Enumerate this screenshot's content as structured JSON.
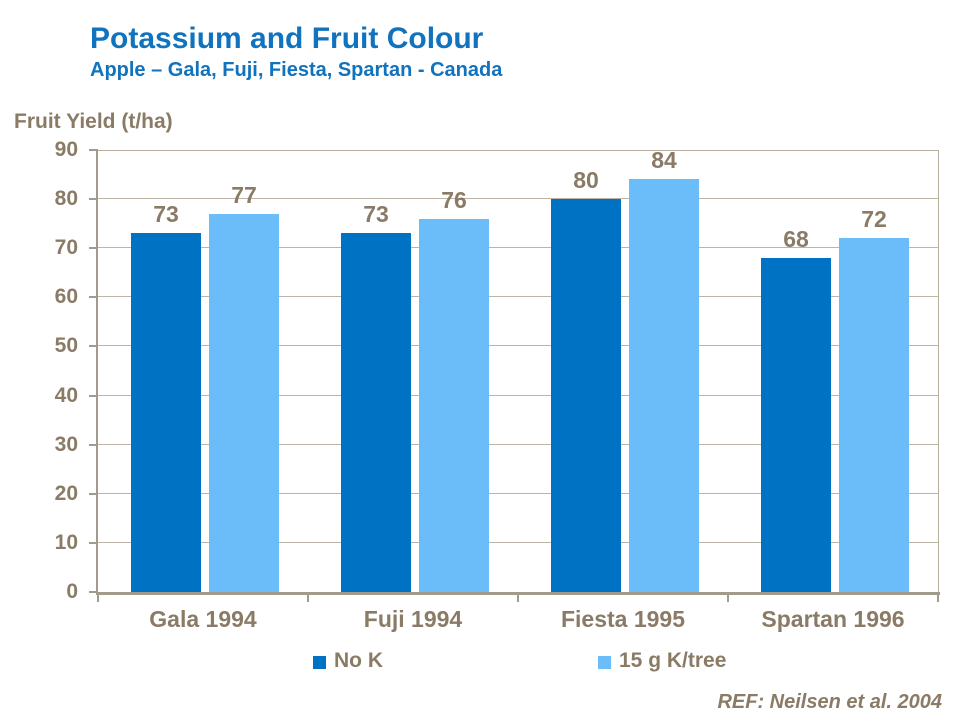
{
  "header": {
    "title": "Potassium and Fruit Colour",
    "subtitle": "Apple – Gala, Fuji, Fiesta, Spartan - Canada"
  },
  "footer": {
    "ref": "REF: Neilsen et al. 2004"
  },
  "colors": {
    "title_blue": "#1172BE",
    "text_brown": "#8A7B66",
    "axis_line": "#A29A8A",
    "gridline": "#BCB4A6",
    "series_dark_blue": "#0072C4",
    "series_light_blue": "#6ABDF9"
  },
  "chart_data": {
    "type": "bar",
    "title": "Potassium and Fruit Colour",
    "subtitle": "Apple – Gala, Fuji, Fiesta, Spartan - Canada",
    "ylabel": "Fruit Yield (t/ha)",
    "xlabel": "",
    "categories": [
      "Gala 1994",
      "Fuji 1994",
      "Fiesta 1995",
      "Spartan 1996"
    ],
    "series": [
      {
        "name": "No K",
        "color": "#0072C4",
        "values": [
          73,
          73,
          80,
          68
        ]
      },
      {
        "name": "15 g K/tree",
        "color": "#6ABDF9",
        "values": [
          77,
          76,
          84,
          72
        ]
      }
    ],
    "ylim": [
      0,
      90
    ],
    "ytick_step": 10,
    "grid": true,
    "legend_position": "bottom",
    "bar_value_labels_shown": true
  }
}
